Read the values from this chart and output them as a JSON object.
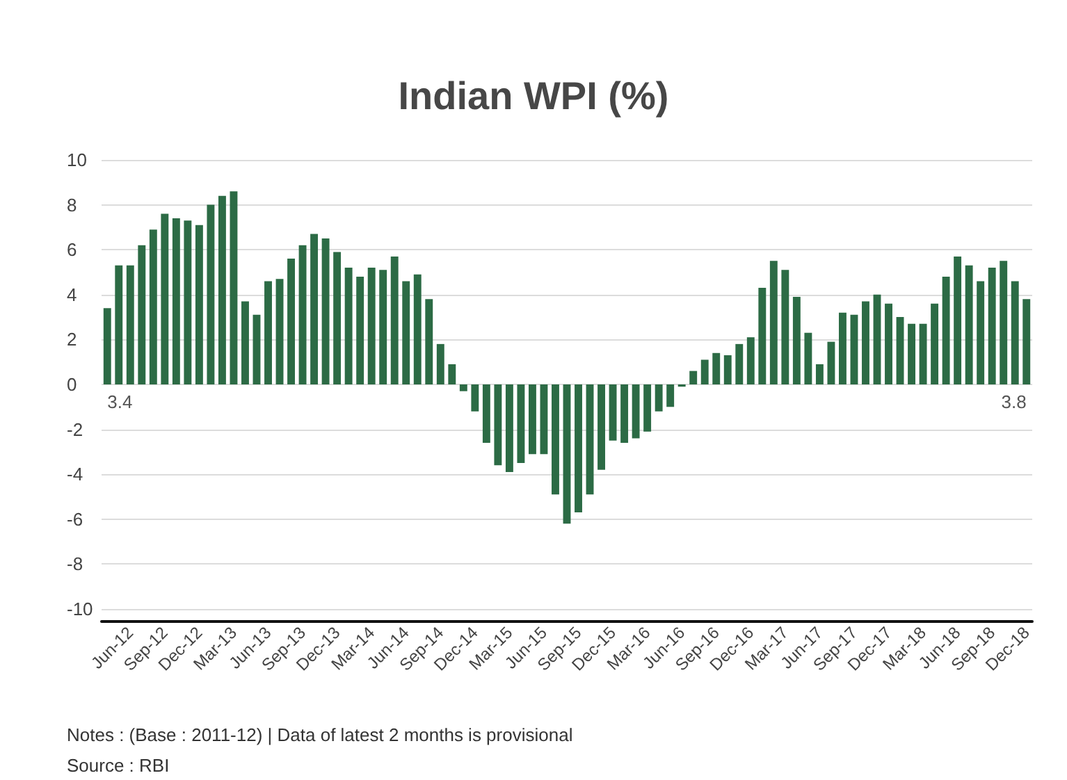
{
  "chart_data": {
    "type": "bar",
    "title": "Indian WPI (%)",
    "categories": [
      null,
      null,
      "Jun-12",
      null,
      null,
      "Sep-12",
      null,
      null,
      "Dec-12",
      null,
      null,
      "Mar-13",
      null,
      null,
      "Jun-13",
      null,
      null,
      "Sep-13",
      null,
      null,
      "Dec-13",
      null,
      null,
      "Mar-14",
      null,
      null,
      "Jun-14",
      null,
      null,
      "Sep-14",
      null,
      null,
      "Dec-14",
      null,
      null,
      "Mar-15",
      null,
      null,
      "Jun-15",
      null,
      null,
      "Sep-15",
      null,
      null,
      "Dec-15",
      null,
      null,
      "Mar-16",
      null,
      null,
      "Jun-16",
      null,
      null,
      "Sep-16",
      null,
      null,
      "Dec-16",
      null,
      null,
      "Mar-17",
      null,
      null,
      "Jun-17",
      null,
      null,
      "Sep-17",
      null,
      null,
      "Dec-17",
      null,
      null,
      "Mar-18",
      null,
      null,
      "Jun-18",
      null,
      null,
      "Sep-18",
      null,
      null,
      "Dec-18"
    ],
    "values": [
      3.4,
      5.3,
      5.3,
      6.2,
      6.9,
      7.6,
      7.4,
      7.3,
      7.1,
      8.0,
      8.4,
      8.6,
      3.7,
      3.1,
      4.6,
      4.7,
      5.6,
      6.2,
      6.7,
      6.5,
      5.9,
      5.2,
      4.8,
      5.2,
      5.1,
      5.7,
      4.6,
      4.9,
      3.8,
      1.8,
      0.9,
      -0.3,
      -1.2,
      -2.6,
      -3.6,
      -3.9,
      -3.5,
      -3.1,
      -3.1,
      -4.9,
      -6.2,
      -5.7,
      -4.9,
      -3.8,
      -2.5,
      -2.6,
      -2.4,
      -2.1,
      -1.2,
      -1.0,
      -0.1,
      0.6,
      1.1,
      1.4,
      1.3,
      1.8,
      2.1,
      4.3,
      5.5,
      5.1,
      3.9,
      2.3,
      0.9,
      1.9,
      3.2,
      3.1,
      3.7,
      4.0,
      3.6,
      3.0,
      2.7,
      2.7,
      3.6,
      4.8,
      5.7,
      5.3,
      4.6,
      5.2,
      5.5,
      4.6,
      3.8
    ],
    "value_labels": [
      "3.4",
      null,
      null,
      null,
      null,
      null,
      null,
      null,
      null,
      null,
      null,
      null,
      null,
      null,
      null,
      null,
      null,
      null,
      null,
      null,
      null,
      null,
      null,
      null,
      null,
      null,
      null,
      null,
      null,
      null,
      null,
      null,
      null,
      null,
      null,
      null,
      null,
      null,
      null,
      null,
      null,
      null,
      null,
      null,
      null,
      null,
      null,
      null,
      null,
      null,
      null,
      null,
      null,
      null,
      null,
      null,
      null,
      null,
      null,
      null,
      null,
      null,
      null,
      null,
      null,
      null,
      null,
      null,
      null,
      null,
      null,
      null,
      null,
      null,
      null,
      null,
      null,
      null,
      null,
      null,
      "3.8"
    ],
    "color": "#2c6b45",
    "ylim": [
      -10,
      10
    ],
    "yticks": [
      -10,
      -8,
      -6,
      -4,
      -2,
      0,
      2,
      4,
      6,
      8,
      10
    ],
    "grid": "y",
    "annotations": [
      "Notes : (Base : 2011-12) | Data of latest 2 months is provisional",
      "Source : RBI"
    ]
  }
}
